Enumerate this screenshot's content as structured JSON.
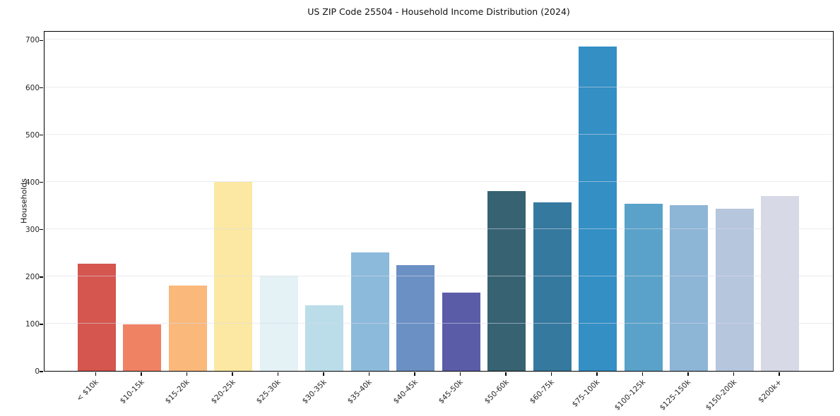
{
  "title": "US ZIP Code 25504 - Household Income Distribution (2024)",
  "chart_data": {
    "type": "bar",
    "title": "US ZIP Code 25504 - Household Income Distribution (2024)",
    "xlabel": "",
    "ylabel": "Households",
    "categories": [
      "< $10k",
      "$10-15k",
      "$15-20k",
      "$20-25k",
      "$25-30k",
      "$30-35k",
      "$35-40k",
      "$40-45k",
      "$45-50k",
      "$50-60k",
      "$60-75k",
      "$75-100k",
      "$100-125k",
      "$125-150k",
      "$150-200k",
      "$200k+"
    ],
    "values": [
      226,
      98,
      180,
      400,
      201,
      139,
      250,
      224,
      166,
      380,
      357,
      685,
      353,
      351,
      343,
      370
    ],
    "bar_colors": [
      "#d4564e",
      "#f08264",
      "#fab87b",
      "#fce8a2",
      "#e4f1f5",
      "#badde9",
      "#8cbada",
      "#6b90c4",
      "#5a5ca8",
      "#376272",
      "#36799f",
      "#338fc4",
      "#5aa2c9",
      "#8db5d6",
      "#b5c6dd",
      "#d7d9e6"
    ],
    "ylim": [
      0,
      720
    ],
    "yticks": [
      0,
      100,
      200,
      300,
      400,
      500,
      600,
      700
    ],
    "grid": "horizontal",
    "legend": "none",
    "x_tick_rotation": 45,
    "frame": "box",
    "background_color": "#ffffff",
    "spine_color": "#000000"
  }
}
